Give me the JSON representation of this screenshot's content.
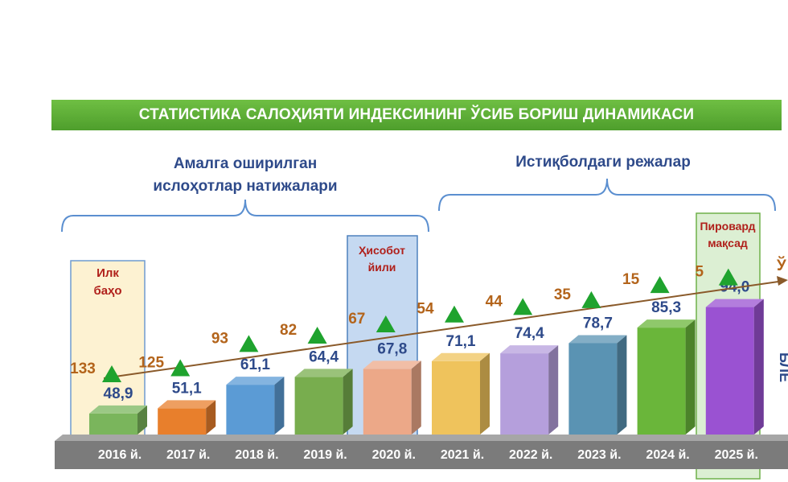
{
  "chart_data": {
    "type": "bar",
    "title": "СТАТИСТИКА САЛОҲИЯТИ ИНДЕКСИНИНГ ЎСИБ БОРИШ ДИНАМИКАСИ",
    "categories": [
      "2016 й.",
      "2017 й.",
      "2018 й.",
      "2019 й.",
      "2020 й.",
      "2021 й.",
      "2022 й.",
      "2023 й.",
      "2024 й.",
      "2025 й."
    ],
    "series": [
      {
        "values": [
          48.9,
          51.1,
          61.1,
          64.4,
          67.8,
          71.1,
          74.4,
          78.7,
          85.3,
          94.0
        ],
        "labels": [
          "48,9",
          "51,1",
          "61,1",
          "64,4",
          "67,8",
          "71,1",
          "74,4",
          "78,7",
          "85,3",
          "94,0"
        ]
      },
      {
        "values": [
          133,
          125,
          93,
          82,
          67,
          54,
          44,
          35,
          15,
          5
        ],
        "labels": [
          "133",
          "125",
          "93",
          "82",
          "67",
          "54",
          "44",
          "35",
          "15",
          "5"
        ]
      }
    ],
    "groups": [
      {
        "label": "Амалга оширилган ислоҳотлар натижалари"
      },
      {
        "label": "Истиқболдаги режалар"
      }
    ],
    "annotations": {
      "first": "Илк баҳо",
      "report": "Ҳисобот йили",
      "goal": "Пировард мақсад",
      "cut_left": "Ў",
      "cut_right": "БЛЕ"
    },
    "colors": {
      "bars": [
        "#7ab55c",
        "#e87f2c",
        "#5b9bd5",
        "#78ad4e",
        "#eca888",
        "#efc35c",
        "#b59fdc",
        "#5a93b3",
        "#6ab63a",
        "#9a52d2"
      ],
      "value_label": "#2e4a8a",
      "rank_label": "#b3641b",
      "marker": "#1fa32e",
      "trend": "#8a5a2a",
      "platform": "#7b7b7b"
    }
  }
}
